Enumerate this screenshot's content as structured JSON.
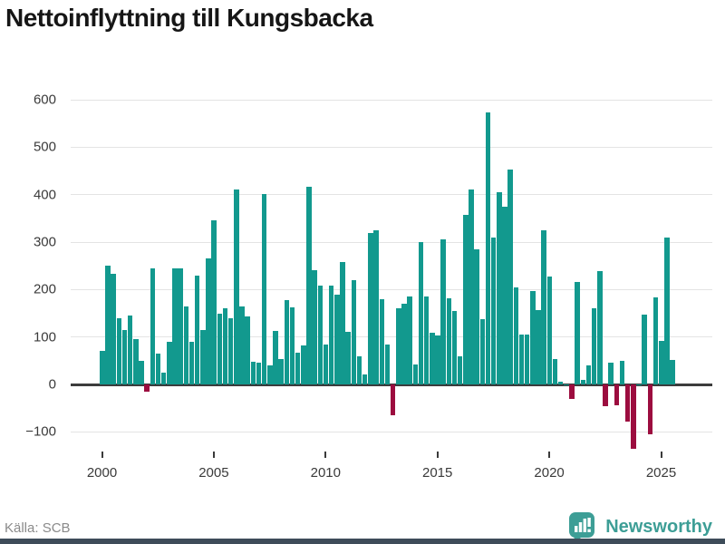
{
  "page": {
    "title": "Nettoinflyttning till Kungsbacka",
    "source": "Källa: SCB",
    "brand": "Newsworthy"
  },
  "colors": {
    "positive_bar": "#12998e",
    "negative_bar": "#9c0d3f",
    "grid": "#e4e4e4",
    "zero_line": "#3c3c3c",
    "axis_text": "#3a3a3a",
    "title_text": "#161616",
    "source_text": "#8a8a8a",
    "brand_teal": "#3d9e96",
    "footer_bar": "#3e4c59"
  },
  "chart_data": {
    "type": "bar",
    "title": "Nettoinflyttning till Kungsbacka",
    "frequency": "quarterly",
    "xlabel": "",
    "ylabel": "",
    "grid": "horizontal",
    "legend": "none",
    "y_ticks": [
      600,
      500,
      400,
      300,
      200,
      100,
      0,
      -100
    ],
    "ylim": [
      -150,
      620
    ],
    "x_tick_labels": [
      "2000",
      "2005",
      "2010",
      "2015",
      "2020",
      "2025"
    ],
    "years": [
      {
        "year": 2000,
        "values": [
          70,
          250,
          233,
          140
        ]
      },
      {
        "year": 2001,
        "values": [
          115,
          145,
          95,
          50
        ]
      },
      {
        "year": 2002,
        "values": [
          -15,
          245,
          65,
          25
        ]
      },
      {
        "year": 2003,
        "values": [
          90,
          245,
          245,
          165
        ]
      },
      {
        "year": 2004,
        "values": [
          90,
          230,
          115,
          265
        ]
      },
      {
        "year": 2005,
        "values": [
          345,
          150,
          160,
          140
        ]
      },
      {
        "year": 2006,
        "values": [
          410,
          165,
          143,
          47
        ]
      },
      {
        "year": 2007,
        "values": [
          45,
          402,
          41,
          112
        ]
      },
      {
        "year": 2008,
        "values": [
          54,
          177,
          162,
          66
        ]
      },
      {
        "year": 2009,
        "values": [
          83,
          416,
          240,
          209
        ]
      },
      {
        "year": 2010,
        "values": [
          84,
          209,
          189,
          258
        ]
      },
      {
        "year": 2011,
        "values": [
          110,
          219,
          59,
          21
        ]
      },
      {
        "year": 2012,
        "values": [
          319,
          325,
          180,
          85
        ]
      },
      {
        "year": 2013,
        "values": [
          -65,
          160,
          170,
          185
        ]
      },
      {
        "year": 2014,
        "values": [
          42,
          300,
          185,
          108
        ]
      },
      {
        "year": 2015,
        "values": [
          104,
          305,
          182,
          155
        ]
      },
      {
        "year": 2016,
        "values": [
          60,
          358,
          410,
          285
        ]
      },
      {
        "year": 2017,
        "values": [
          137,
          573,
          310,
          405
        ]
      },
      {
        "year": 2018,
        "values": [
          375,
          452,
          205,
          105
        ]
      },
      {
        "year": 2019,
        "values": [
          106,
          196,
          157,
          325
        ]
      },
      {
        "year": 2020,
        "values": [
          228,
          53,
          5,
          0
        ]
      },
      {
        "year": 2021,
        "values": [
          -30,
          215,
          10,
          40
        ]
      },
      {
        "year": 2022,
        "values": [
          160,
          238,
          -46,
          46
        ]
      },
      {
        "year": 2023,
        "values": [
          -43,
          49,
          -79,
          -135
        ]
      },
      {
        "year": 2024,
        "values": [
          0,
          148,
          -106,
          183
        ]
      },
      {
        "year": 2025,
        "values": [
          92,
          310,
          52
        ]
      }
    ]
  }
}
